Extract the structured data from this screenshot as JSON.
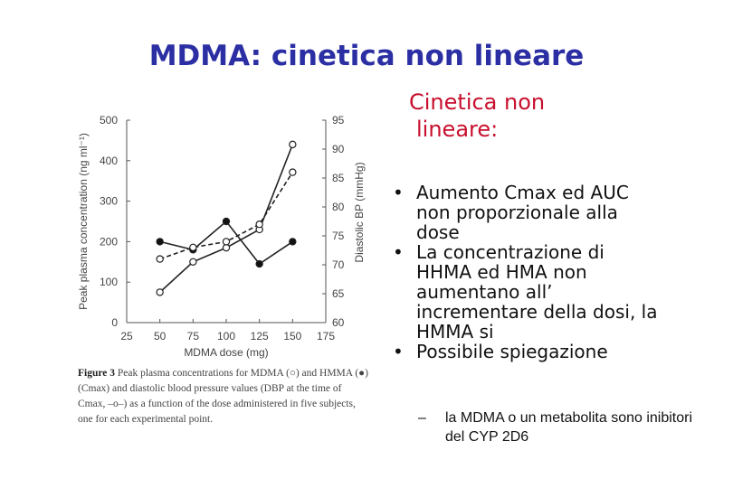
{
  "slide": {
    "title": "MDMA: cinetica non lineare",
    "subtitle_lines": [
      "Cinetica non",
      "lineare:"
    ],
    "bullets": [
      "Aumento Cmax ed AUC non proporzionale alla dose",
      "La concentrazione di HHMA ed HMA non aumentano all’ incrementare della dosi, la HMMA si",
      "Possibile spiegazione"
    ],
    "subbullet": "la MDMA o un metabolita sono inibitori del CYP 2D6",
    "subbullet_marker": "–",
    "bullet_marker": "•"
  },
  "caption": {
    "label": "Figure 3",
    "text": "Peak plasma concentrations for MDMA (○) and HMMA (●) (Cmax) and diastolic blood pressure values (DBP at the time of Cmax, –o–) as a function of the dose administered in five subjects, one for each experimental point."
  },
  "chart_data": {
    "type": "line",
    "xlabel": "MDMA dose (mg)",
    "ylabel": "Peak plasma concentration (ng ml⁻¹)",
    "y2label": "Diastolic BP (mmHg)",
    "x_ticks": [
      25,
      50,
      75,
      100,
      125,
      150,
      175
    ],
    "y_ticks": [
      0,
      100,
      200,
      300,
      400,
      500
    ],
    "y2_ticks": [
      60,
      65,
      70,
      75,
      80,
      85,
      90,
      95
    ],
    "xlim": [
      25,
      175
    ],
    "ylim": [
      0,
      500
    ],
    "y2lim": [
      60,
      95
    ],
    "series": [
      {
        "name": "MDMA",
        "axis": "left",
        "marker": "open",
        "line": "solid",
        "x": [
          50,
          75,
          100,
          125,
          150
        ],
        "values": [
          75,
          150,
          185,
          230,
          440
        ]
      },
      {
        "name": "HMMA",
        "axis": "left",
        "marker": "filled",
        "line": "solid",
        "x": [
          50,
          75,
          100,
          125,
          150
        ],
        "values": [
          200,
          180,
          250,
          145,
          200
        ]
      },
      {
        "name": "DBP",
        "axis": "right",
        "marker": "open",
        "line": "dashed",
        "x": [
          50,
          75,
          100,
          125,
          150
        ],
        "values": [
          71,
          73,
          74,
          77,
          86
        ]
      }
    ]
  }
}
